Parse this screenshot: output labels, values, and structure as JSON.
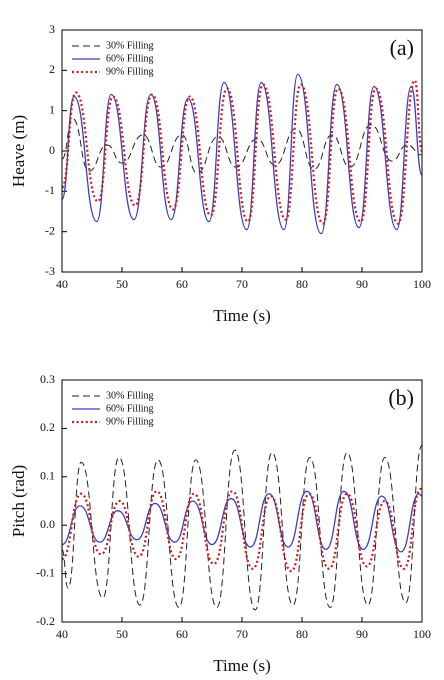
{
  "chart_data": [
    {
      "type": "line",
      "annotation": "(a)",
      "xlabel": "Time (s)",
      "ylabel": "Heave (m)",
      "xlim": [
        40,
        100
      ],
      "xticks": [
        40,
        50,
        60,
        70,
        80,
        90,
        100
      ],
      "ylim": [
        -3,
        3
      ],
      "yticks": [
        -3,
        -2,
        -1,
        0,
        1,
        2,
        3
      ],
      "legend": "upper-left",
      "series": [
        {
          "name": "30% Filling",
          "color": "#222222",
          "style": "dashed",
          "x": [
            40,
            41.8,
            44.5,
            47.5,
            50,
            53.5,
            56.5,
            60,
            62.5,
            66,
            69,
            72.5,
            75.5,
            79,
            82,
            85,
            88,
            91.5,
            95,
            97.5,
            100
          ],
          "values": [
            -0.2,
            0.8,
            -0.5,
            0.15,
            -0.3,
            0.4,
            -0.4,
            0.4,
            -0.55,
            0.35,
            -0.4,
            0.3,
            -0.35,
            0.55,
            -0.45,
            0.4,
            -0.4,
            0.65,
            -0.25,
            0.15,
            -0.1
          ]
        },
        {
          "name": "60% Filling",
          "color": "#3a3fc8",
          "style": "solid",
          "x": [
            40,
            42,
            45.8,
            48.2,
            52,
            54.8,
            58.2,
            61,
            64.5,
            67,
            70.8,
            73.2,
            77,
            79.3,
            83.2,
            85.8,
            89.5,
            92,
            95.8,
            98.2,
            100
          ],
          "values": [
            -1.2,
            1.35,
            -1.75,
            1.4,
            -1.7,
            1.4,
            -1.7,
            1.3,
            -1.75,
            1.7,
            -1.95,
            1.7,
            -1.95,
            1.9,
            -2.05,
            1.65,
            -1.9,
            1.6,
            -1.95,
            1.6,
            -0.6
          ]
        },
        {
          "name": "90% Filling",
          "color": "#cc1a1a",
          "style": "dotted",
          "x": [
            40,
            42.3,
            46,
            48.5,
            52.2,
            55,
            58.5,
            61.3,
            64.8,
            67.5,
            71,
            73.5,
            77.3,
            79.8,
            83.5,
            86,
            89.8,
            92.3,
            96,
            98.8,
            100
          ],
          "values": [
            -0.9,
            1.45,
            -1.25,
            1.35,
            -1.35,
            1.4,
            -1.45,
            1.35,
            -1.6,
            1.55,
            -1.75,
            1.65,
            -1.7,
            1.65,
            -1.8,
            1.55,
            -1.75,
            1.55,
            -1.8,
            1.75,
            0
          ]
        }
      ]
    },
    {
      "type": "line",
      "annotation": "(b)",
      "xlabel": "Time (s)",
      "ylabel": "Pitch (rad)",
      "xlim": [
        40,
        100
      ],
      "xticks": [
        40,
        50,
        60,
        70,
        80,
        90,
        100
      ],
      "ylim": [
        -0.2,
        0.3
      ],
      "yticks": [
        -0.2,
        -0.1,
        {
          "value": 0,
          "label": "0.0"
        },
        0.1,
        0.2,
        0.3
      ],
      "legend": "upper-left",
      "series": [
        {
          "name": "30% Filling",
          "color": "#222222",
          "style": "dashed",
          "x": [
            40,
            41,
            43.2,
            46.8,
            49.5,
            53,
            56,
            59.5,
            62.3,
            65.8,
            68.8,
            72.2,
            75,
            78.5,
            81.3,
            84.7,
            87.5,
            91,
            93.8,
            97.3,
            100
          ],
          "values": [
            -0.05,
            -0.13,
            0.13,
            -0.15,
            0.14,
            -0.165,
            0.135,
            -0.17,
            0.135,
            -0.17,
            0.155,
            -0.175,
            0.15,
            -0.165,
            0.14,
            -0.17,
            0.15,
            -0.165,
            0.14,
            -0.16,
            0.165
          ]
        },
        {
          "name": "60% Filling",
          "color": "#3a3fc8",
          "style": "solid",
          "x": [
            40,
            43,
            46.3,
            49.3,
            52.5,
            55.5,
            58.8,
            61.8,
            65,
            68.2,
            71.4,
            74.5,
            77.7,
            80.8,
            84,
            87,
            90.2,
            93.3,
            96.5,
            99.5,
            100
          ],
          "values": [
            -0.04,
            0.04,
            -0.035,
            0.03,
            -0.03,
            0.045,
            -0.035,
            0.05,
            -0.04,
            0.055,
            -0.045,
            0.065,
            -0.045,
            0.07,
            -0.05,
            0.07,
            -0.05,
            0.06,
            -0.055,
            0.065,
            0.06
          ]
        },
        {
          "name": "90% Filling",
          "color": "#cc1a1a",
          "style": "dotted",
          "x": [
            40,
            43.2,
            46.5,
            49.6,
            52.8,
            55.8,
            59,
            62,
            65.3,
            68.4,
            71.8,
            74.8,
            78.2,
            81.2,
            84.5,
            87.5,
            90.8,
            93.8,
            97,
            99.8,
            100
          ],
          "values": [
            -0.07,
            0.065,
            -0.06,
            0.05,
            -0.065,
            0.07,
            -0.07,
            0.065,
            -0.08,
            0.07,
            -0.09,
            0.06,
            -0.095,
            0.065,
            -0.09,
            0.065,
            -0.085,
            0.05,
            -0.09,
            0.075,
            0.074
          ]
        }
      ]
    }
  ]
}
